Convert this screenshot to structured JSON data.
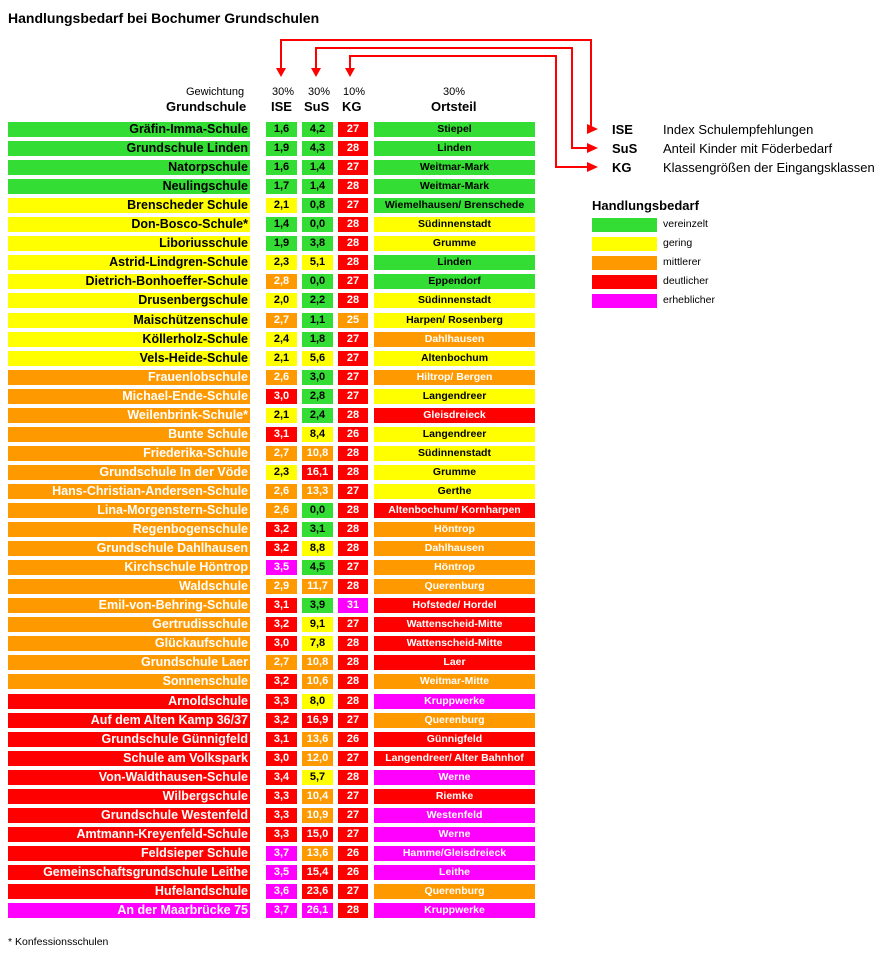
{
  "title": "Handlungsbedarf bei Bochumer Grundschulen",
  "header": {
    "gewichtung_label": "Gewichtung",
    "grundschule_label": "Grundschule",
    "ise_weight": "30%",
    "ise_label": "ISE",
    "sus_weight": "30%",
    "sus_label": "SuS",
    "kg_weight": "10%",
    "kg_label": "KG",
    "ort_weight": "30%",
    "ort_label": "Ortsteil"
  },
  "abbreviations": [
    {
      "abbr": "ISE",
      "desc": "Index Schulempfehlungen"
    },
    {
      "abbr": "SuS",
      "desc": "Anteil Kinder mit Föderbedarf"
    },
    {
      "abbr": "KG",
      "desc": "Klassengrößen der Eingangsklassen"
    }
  ],
  "legend": {
    "title": "Handlungsbedarf",
    "items": [
      {
        "label": "vereinzelt",
        "color": "#33dd33"
      },
      {
        "label": "gering",
        "color": "#ffff00"
      },
      {
        "label": "mittlerer",
        "color": "#ff9900"
      },
      {
        "label": "deutlicher",
        "color": "#ff0000"
      },
      {
        "label": "erheblicher",
        "color": "#ff00ff"
      }
    ]
  },
  "footnote": "* Konfessionsschulen",
  "chart_data": {
    "type": "table",
    "columns": [
      "Grundschule",
      "ISE",
      "SuS",
      "KG",
      "Ortsteil"
    ],
    "levels": [
      "vereinzelt",
      "gering",
      "mittlerer",
      "deutlicher",
      "erheblicher"
    ],
    "rows": [
      {
        "name": "Gräfin-Imma-Schule",
        "name_level": 0,
        "ise": "1,6",
        "ise_level": 0,
        "sus": "4,2",
        "sus_level": 0,
        "kg": "27",
        "kg_level": 3,
        "ort": "Stiepel",
        "ort_level": 0
      },
      {
        "name": "Grundschule Linden",
        "name_level": 0,
        "ise": "1,9",
        "ise_level": 0,
        "sus": "4,3",
        "sus_level": 0,
        "kg": "28",
        "kg_level": 3,
        "ort": "Linden",
        "ort_level": 0
      },
      {
        "name": "Natorpschule",
        "name_level": 0,
        "ise": "1,6",
        "ise_level": 0,
        "sus": "1,4",
        "sus_level": 0,
        "kg": "27",
        "kg_level": 3,
        "ort": "Weitmar-Mark",
        "ort_level": 0
      },
      {
        "name": "Neulingschule",
        "name_level": 0,
        "ise": "1,7",
        "ise_level": 0,
        "sus": "1,4",
        "sus_level": 0,
        "kg": "28",
        "kg_level": 3,
        "ort": "Weitmar-Mark",
        "ort_level": 0
      },
      {
        "name": "Brenscheder Schule",
        "name_level": 1,
        "ise": "2,1",
        "ise_level": 1,
        "sus": "0,8",
        "sus_level": 0,
        "kg": "27",
        "kg_level": 3,
        "ort": "Wiemelhausen/ Brenschede",
        "ort_level": 0
      },
      {
        "name": "Don-Bosco-Schule*",
        "name_level": 1,
        "ise": "1,4",
        "ise_level": 0,
        "sus": "0,0",
        "sus_level": 0,
        "kg": "28",
        "kg_level": 3,
        "ort": "Südinnenstadt",
        "ort_level": 1
      },
      {
        "name": "Liboriusschule",
        "name_level": 1,
        "ise": "1,9",
        "ise_level": 0,
        "sus": "3,8",
        "sus_level": 0,
        "kg": "28",
        "kg_level": 3,
        "ort": "Grumme",
        "ort_level": 1
      },
      {
        "name": "Astrid-Lindgren-Schule",
        "name_level": 1,
        "ise": "2,3",
        "ise_level": 1,
        "sus": "5,1",
        "sus_level": 1,
        "kg": "28",
        "kg_level": 3,
        "ort": "Linden",
        "ort_level": 0
      },
      {
        "name": "Dietrich-Bonhoeffer-Schule",
        "name_level": 1,
        "ise": "2,8",
        "ise_level": 2,
        "sus": "0,0",
        "sus_level": 0,
        "kg": "27",
        "kg_level": 3,
        "ort": "Eppendorf",
        "ort_level": 0
      },
      {
        "name": "Drusenbergschule",
        "name_level": 1,
        "ise": "2,0",
        "ise_level": 1,
        "sus": "2,2",
        "sus_level": 0,
        "kg": "28",
        "kg_level": 3,
        "ort": "Südinnenstadt",
        "ort_level": 1
      },
      {
        "name": "Maischützenschule",
        "name_level": 1,
        "ise": "2,7",
        "ise_level": 2,
        "sus": "1,1",
        "sus_level": 0,
        "kg": "25",
        "kg_level": 2,
        "ort": "Harpen/ Rosenberg",
        "ort_level": 1
      },
      {
        "name": "Köllerholz-Schule",
        "name_level": 1,
        "ise": "2,4",
        "ise_level": 1,
        "sus": "1,8",
        "sus_level": 0,
        "kg": "27",
        "kg_level": 3,
        "ort": "Dahlhausen",
        "ort_level": 2
      },
      {
        "name": "Vels-Heide-Schule",
        "name_level": 1,
        "ise": "2,1",
        "ise_level": 1,
        "sus": "5,6",
        "sus_level": 1,
        "kg": "27",
        "kg_level": 3,
        "ort": "Altenbochum",
        "ort_level": 1
      },
      {
        "name": "Frauenlobschule",
        "name_level": 2,
        "ise": "2,6",
        "ise_level": 2,
        "sus": "3,0",
        "sus_level": 0,
        "kg": "27",
        "kg_level": 3,
        "ort": "Hiltrop/ Bergen",
        "ort_level": 2
      },
      {
        "name": "Michael-Ende-Schule",
        "name_level": 2,
        "ise": "3,0",
        "ise_level": 3,
        "sus": "2,8",
        "sus_level": 0,
        "kg": "27",
        "kg_level": 3,
        "ort": "Langendreer",
        "ort_level": 1
      },
      {
        "name": "Weilenbrink-Schule*",
        "name_level": 2,
        "ise": "2,1",
        "ise_level": 1,
        "sus": "2,4",
        "sus_level": 0,
        "kg": "28",
        "kg_level": 3,
        "ort": "Gleisdreieck",
        "ort_level": 3
      },
      {
        "name": "Bunte Schule",
        "name_level": 2,
        "ise": "3,1",
        "ise_level": 3,
        "sus": "8,4",
        "sus_level": 1,
        "kg": "26",
        "kg_level": 3,
        "ort": "Langendreer",
        "ort_level": 1
      },
      {
        "name": "Friederika-Schule",
        "name_level": 2,
        "ise": "2,7",
        "ise_level": 2,
        "sus": "10,8",
        "sus_level": 2,
        "kg": "28",
        "kg_level": 3,
        "ort": "Südinnenstadt",
        "ort_level": 1
      },
      {
        "name": "Grundschule In der Vöde",
        "name_level": 2,
        "ise": "2,3",
        "ise_level": 1,
        "sus": "16,1",
        "sus_level": 3,
        "kg": "28",
        "kg_level": 3,
        "ort": "Grumme",
        "ort_level": 1
      },
      {
        "name": "Hans-Christian-Andersen-Schule",
        "name_level": 2,
        "ise": "2,6",
        "ise_level": 2,
        "sus": "13,3",
        "sus_level": 2,
        "kg": "27",
        "kg_level": 3,
        "ort": "Gerthe",
        "ort_level": 1
      },
      {
        "name": "Lina-Morgenstern-Schule",
        "name_level": 2,
        "ise": "2,6",
        "ise_level": 2,
        "sus": "0,0",
        "sus_level": 0,
        "kg": "28",
        "kg_level": 3,
        "ort": "Altenbochum/ Kornharpen",
        "ort_level": 3
      },
      {
        "name": "Regenbogenschule",
        "name_level": 2,
        "ise": "3,2",
        "ise_level": 3,
        "sus": "3,1",
        "sus_level": 0,
        "kg": "28",
        "kg_level": 3,
        "ort": "Höntrop",
        "ort_level": 2
      },
      {
        "name": "Grundschule Dahlhausen",
        "name_level": 2,
        "ise": "3,2",
        "ise_level": 3,
        "sus": "8,8",
        "sus_level": 1,
        "kg": "28",
        "kg_level": 3,
        "ort": "Dahlhausen",
        "ort_level": 2
      },
      {
        "name": "Kirchschule Höntrop",
        "name_level": 2,
        "ise": "3,5",
        "ise_level": 4,
        "sus": "4,5",
        "sus_level": 0,
        "kg": "27",
        "kg_level": 3,
        "ort": "Höntrop",
        "ort_level": 2
      },
      {
        "name": "Waldschule",
        "name_level": 2,
        "ise": "2,9",
        "ise_level": 2,
        "sus": "11,7",
        "sus_level": 2,
        "kg": "28",
        "kg_level": 3,
        "ort": "Querenburg",
        "ort_level": 2
      },
      {
        "name": "Emil-von-Behring-Schule",
        "name_level": 2,
        "ise": "3,1",
        "ise_level": 3,
        "sus": "3,9",
        "sus_level": 0,
        "kg": "31",
        "kg_level": 4,
        "ort": "Hofstede/ Hordel",
        "ort_level": 3
      },
      {
        "name": "Gertrudisschule",
        "name_level": 2,
        "ise": "3,2",
        "ise_level": 3,
        "sus": "9,1",
        "sus_level": 1,
        "kg": "27",
        "kg_level": 3,
        "ort": "Wattenscheid-Mitte",
        "ort_level": 3
      },
      {
        "name": "Glückaufschule",
        "name_level": 2,
        "ise": "3,0",
        "ise_level": 3,
        "sus": "7,8",
        "sus_level": 1,
        "kg": "28",
        "kg_level": 3,
        "ort": "Wattenscheid-Mitte",
        "ort_level": 3
      },
      {
        "name": "Grundschule Laer",
        "name_level": 2,
        "ise": "2,7",
        "ise_level": 2,
        "sus": "10,8",
        "sus_level": 2,
        "kg": "28",
        "kg_level": 3,
        "ort": "Laer",
        "ort_level": 3
      },
      {
        "name": "Sonnenschule",
        "name_level": 2,
        "ise": "3,2",
        "ise_level": 3,
        "sus": "10,6",
        "sus_level": 2,
        "kg": "28",
        "kg_level": 3,
        "ort": "Weitmar-Mitte",
        "ort_level": 2
      },
      {
        "name": "Arnoldschule",
        "name_level": 3,
        "ise": "3,3",
        "ise_level": 3,
        "sus": "8,0",
        "sus_level": 1,
        "kg": "28",
        "kg_level": 3,
        "ort": "Kruppwerke",
        "ort_level": 4
      },
      {
        "name": "Auf dem Alten Kamp 36/37",
        "name_level": 3,
        "ise": "3,2",
        "ise_level": 3,
        "sus": "16,9",
        "sus_level": 3,
        "kg": "27",
        "kg_level": 3,
        "ort": "Querenburg",
        "ort_level": 2
      },
      {
        "name": "Grundschule Günnigfeld",
        "name_level": 3,
        "ise": "3,1",
        "ise_level": 3,
        "sus": "13,6",
        "sus_level": 2,
        "kg": "26",
        "kg_level": 3,
        "ort": "Günnigfeld",
        "ort_level": 3
      },
      {
        "name": "Schule am Volkspark",
        "name_level": 3,
        "ise": "3,0",
        "ise_level": 3,
        "sus": "12,0",
        "sus_level": 2,
        "kg": "27",
        "kg_level": 3,
        "ort": "Langendreer/ Alter Bahnhof",
        "ort_level": 3
      },
      {
        "name": "Von-Waldthausen-Schule",
        "name_level": 3,
        "ise": "3,4",
        "ise_level": 3,
        "sus": "5,7",
        "sus_level": 1,
        "kg": "28",
        "kg_level": 3,
        "ort": "Werne",
        "ort_level": 4
      },
      {
        "name": "Wilbergschule",
        "name_level": 3,
        "ise": "3,3",
        "ise_level": 3,
        "sus": "10,4",
        "sus_level": 2,
        "kg": "27",
        "kg_level": 3,
        "ort": "Riemke",
        "ort_level": 3
      },
      {
        "name": "Grundschule Westenfeld",
        "name_level": 3,
        "ise": "3,3",
        "ise_level": 3,
        "sus": "10,9",
        "sus_level": 2,
        "kg": "27",
        "kg_level": 3,
        "ort": "Westenfeld",
        "ort_level": 4
      },
      {
        "name": "Amtmann-Kreyenfeld-Schule",
        "name_level": 3,
        "ise": "3,3",
        "ise_level": 3,
        "sus": "15,0",
        "sus_level": 3,
        "kg": "27",
        "kg_level": 3,
        "ort": "Werne",
        "ort_level": 4
      },
      {
        "name": "Feldsieper Schule",
        "name_level": 3,
        "ise": "3,7",
        "ise_level": 4,
        "sus": "13,6",
        "sus_level": 2,
        "kg": "26",
        "kg_level": 3,
        "ort": "Hamme/Gleisdreieck",
        "ort_level": 4
      },
      {
        "name": "Gemeinschaftsgrundschule Leithe",
        "name_level": 3,
        "ise": "3,5",
        "ise_level": 4,
        "sus": "15,4",
        "sus_level": 3,
        "kg": "26",
        "kg_level": 3,
        "ort": "Leithe",
        "ort_level": 4
      },
      {
        "name": "Hufelandschule",
        "name_level": 3,
        "ise": "3,6",
        "ise_level": 4,
        "sus": "23,6",
        "sus_level": 3,
        "kg": "27",
        "kg_level": 3,
        "ort": "Querenburg",
        "ort_level": 2
      },
      {
        "name": "An der Maarbrücke 75",
        "name_level": 4,
        "ise": "3,7",
        "ise_level": 4,
        "sus": "26,1",
        "sus_level": 4,
        "kg": "28",
        "kg_level": 3,
        "ort": "Kruppwerke",
        "ort_level": 4
      }
    ]
  }
}
